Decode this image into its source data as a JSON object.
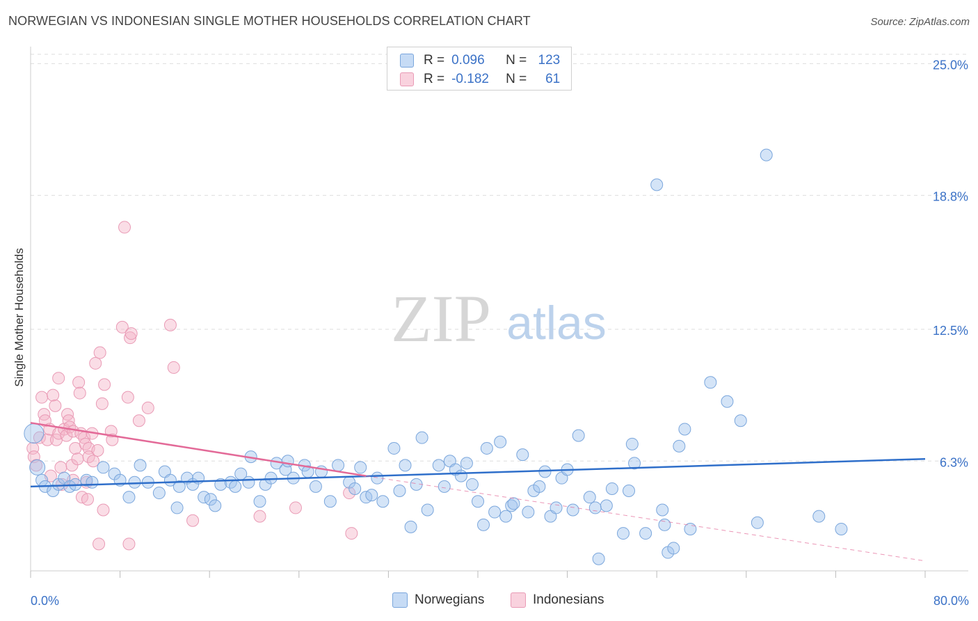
{
  "title": "NORWEGIAN VS INDONESIAN SINGLE MOTHER HOUSEHOLDS CORRELATION CHART",
  "source": "Source: ZipAtlas.com",
  "watermark": {
    "zip": "ZIP",
    "atlas": "atlas"
  },
  "legend_top": {
    "row1": {
      "r_label": "R =",
      "r_value": "0.096",
      "n_label": "N =",
      "n_value": "123"
    },
    "row2": {
      "r_label": "R =",
      "r_value": "-0.182",
      "n_label": "N =",
      "n_value": "61"
    }
  },
  "legend_bottom": {
    "series1": "Norwegians",
    "series2": "Indonesians"
  },
  "colors": {
    "blue_fill": "rgba(160,195,238,0.45)",
    "blue_stroke": "#7aa6dc",
    "blue_line": "#2f6fca",
    "pink_fill": "rgba(245,180,200,0.45)",
    "pink_stroke": "#e99ab5",
    "pink_line": "#e36a98",
    "tick_text": "#3b72c7",
    "grid": "#dddddd"
  },
  "chart_data": {
    "type": "scatter",
    "title": "NORWEGIAN VS INDONESIAN SINGLE MOTHER HOUSEHOLDS CORRELATION CHART",
    "xlabel": "",
    "ylabel": "Single Mother Households",
    "xlim": [
      0,
      80
    ],
    "ylim": [
      0,
      25.9
    ],
    "x_tick_labels": [
      "0.0%",
      "80.0%"
    ],
    "y_ticks": [
      6.3,
      12.5,
      18.8,
      25.0
    ],
    "y_tick_labels": [
      "6.3%",
      "12.5%",
      "18.8%",
      "25.0%"
    ],
    "grid": "horizontal dashed",
    "legend": "top-center",
    "series": [
      {
        "name": "Norwegians",
        "color": "#7aa6dc",
        "trend": {
          "x": [
            0,
            80
          ],
          "y": [
            5.1,
            6.4
          ]
        },
        "points": [
          [
            0.3,
            7.6
          ],
          [
            0.6,
            6.0
          ],
          [
            1.0,
            5.4
          ],
          [
            1.3,
            5.1
          ],
          [
            2.0,
            4.9
          ],
          [
            2.5,
            5.2
          ],
          [
            3.0,
            5.5
          ],
          [
            3.5,
            5.1
          ],
          [
            4.0,
            5.2
          ],
          [
            5.0,
            5.4
          ],
          [
            5.5,
            5.3
          ],
          [
            6.5,
            6.0
          ],
          [
            7.5,
            5.7
          ],
          [
            8.0,
            5.4
          ],
          [
            8.8,
            4.6
          ],
          [
            9.3,
            5.3
          ],
          [
            9.8,
            6.1
          ],
          [
            10.5,
            5.3
          ],
          [
            11.5,
            4.8
          ],
          [
            12.0,
            5.8
          ],
          [
            12.5,
            5.4
          ],
          [
            13.1,
            4.1
          ],
          [
            13.3,
            5.1
          ],
          [
            14.0,
            5.5
          ],
          [
            14.5,
            5.2
          ],
          [
            15.0,
            5.5
          ],
          [
            15.5,
            4.6
          ],
          [
            16.1,
            4.5
          ],
          [
            16.5,
            4.2
          ],
          [
            17.0,
            5.2
          ],
          [
            17.9,
            5.3
          ],
          [
            18.3,
            5.1
          ],
          [
            18.8,
            5.7
          ],
          [
            19.7,
            6.5
          ],
          [
            19.5,
            5.3
          ],
          [
            20.5,
            4.4
          ],
          [
            21.0,
            5.2
          ],
          [
            21.5,
            5.5
          ],
          [
            22.0,
            6.2
          ],
          [
            22.8,
            5.9
          ],
          [
            23.0,
            6.3
          ],
          [
            23.5,
            5.5
          ],
          [
            24.5,
            6.1
          ],
          [
            24.8,
            5.8
          ],
          [
            25.5,
            5.1
          ],
          [
            26.0,
            5.8
          ],
          [
            26.8,
            4.4
          ],
          [
            27.5,
            6.1
          ],
          [
            28.5,
            5.3
          ],
          [
            29.0,
            5.0
          ],
          [
            29.5,
            6.0
          ],
          [
            30.0,
            4.6
          ],
          [
            30.5,
            4.7
          ],
          [
            31.0,
            5.5
          ],
          [
            31.5,
            4.4
          ],
          [
            32.5,
            6.9
          ],
          [
            33.0,
            4.9
          ],
          [
            33.5,
            6.1
          ],
          [
            34.0,
            3.2
          ],
          [
            34.5,
            5.2
          ],
          [
            35.0,
            7.4
          ],
          [
            35.5,
            4.0
          ],
          [
            36.5,
            6.1
          ],
          [
            37.0,
            5.1
          ],
          [
            37.5,
            6.3
          ],
          [
            38.0,
            5.9
          ],
          [
            38.5,
            5.6
          ],
          [
            39.0,
            6.2
          ],
          [
            39.5,
            5.2
          ],
          [
            40.0,
            4.4
          ],
          [
            40.5,
            3.3
          ],
          [
            40.8,
            6.9
          ],
          [
            41.5,
            3.9
          ],
          [
            42.0,
            7.2
          ],
          [
            42.5,
            3.7
          ],
          [
            43.0,
            4.2
          ],
          [
            43.2,
            4.3
          ],
          [
            44.0,
            6.6
          ],
          [
            44.5,
            3.9
          ],
          [
            45.0,
            4.9
          ],
          [
            45.5,
            5.1
          ],
          [
            46.0,
            5.8
          ],
          [
            46.5,
            3.7
          ],
          [
            47.0,
            4.1
          ],
          [
            47.5,
            5.5
          ],
          [
            48.0,
            5.9
          ],
          [
            48.5,
            4.0
          ],
          [
            49.0,
            7.5
          ],
          [
            50.0,
            4.6
          ],
          [
            50.5,
            4.1
          ],
          [
            50.8,
            1.7
          ],
          [
            51.5,
            4.2
          ],
          [
            52.0,
            5.0
          ],
          [
            53.0,
            2.9
          ],
          [
            53.5,
            4.9
          ],
          [
            53.8,
            7.1
          ],
          [
            54.0,
            6.2
          ],
          [
            55.0,
            2.9
          ],
          [
            56.0,
            19.3
          ],
          [
            56.5,
            4.0
          ],
          [
            56.7,
            3.3
          ],
          [
            57.0,
            2.0
          ],
          [
            57.5,
            2.2
          ],
          [
            58.0,
            7.0
          ],
          [
            58.5,
            7.8
          ],
          [
            59.0,
            3.1
          ],
          [
            60.8,
            10.0
          ],
          [
            62.3,
            9.1
          ],
          [
            63.5,
            8.2
          ],
          [
            65.0,
            3.4
          ],
          [
            65.8,
            20.7
          ],
          [
            70.5,
            3.7
          ],
          [
            72.5,
            3.1
          ]
        ]
      },
      {
        "name": "Indonesians",
        "color": "#e99ab5",
        "trend": {
          "x": [
            0,
            30
          ],
          "y": [
            8.1,
            5.6
          ]
        },
        "trend_ext": {
          "x": [
            30,
            80
          ],
          "y": [
            5.6,
            1.6
          ]
        },
        "points": [
          [
            0.2,
            6.9
          ],
          [
            0.3,
            6.5
          ],
          [
            0.5,
            6.1
          ],
          [
            0.8,
            7.4
          ],
          [
            1.0,
            9.3
          ],
          [
            1.2,
            8.5
          ],
          [
            1.3,
            8.2
          ],
          [
            1.5,
            7.3
          ],
          [
            1.7,
            7.8
          ],
          [
            1.8,
            5.6
          ],
          [
            2.0,
            9.4
          ],
          [
            2.2,
            8.9
          ],
          [
            2.3,
            7.3
          ],
          [
            2.5,
            7.6
          ],
          [
            2.5,
            10.2
          ],
          [
            2.7,
            6.0
          ],
          [
            2.8,
            5.2
          ],
          [
            3.0,
            7.8
          ],
          [
            3.2,
            7.5
          ],
          [
            3.3,
            8.5
          ],
          [
            3.4,
            8.2
          ],
          [
            3.5,
            7.9
          ],
          [
            3.7,
            6.1
          ],
          [
            3.8,
            7.7
          ],
          [
            3.8,
            5.4
          ],
          [
            4.0,
            6.9
          ],
          [
            4.2,
            6.4
          ],
          [
            4.3,
            10.0
          ],
          [
            4.4,
            9.5
          ],
          [
            4.5,
            7.6
          ],
          [
            4.6,
            4.6
          ],
          [
            4.8,
            7.4
          ],
          [
            4.9,
            7.1
          ],
          [
            5.0,
            5.3
          ],
          [
            5.1,
            4.5
          ],
          [
            5.2,
            6.9
          ],
          [
            5.2,
            6.5
          ],
          [
            5.5,
            7.6
          ],
          [
            5.6,
            6.3
          ],
          [
            5.8,
            10.9
          ],
          [
            6.0,
            6.8
          ],
          [
            6.1,
            2.4
          ],
          [
            6.2,
            11.4
          ],
          [
            6.4,
            9.0
          ],
          [
            6.5,
            4.0
          ],
          [
            6.6,
            9.9
          ],
          [
            7.2,
            7.7
          ],
          [
            7.3,
            7.3
          ],
          [
            8.2,
            12.6
          ],
          [
            8.4,
            17.3
          ],
          [
            8.7,
            9.3
          ],
          [
            8.8,
            2.4
          ],
          [
            8.9,
            12.1
          ],
          [
            9.0,
            12.3
          ],
          [
            9.7,
            8.2
          ],
          [
            10.5,
            8.8
          ],
          [
            12.5,
            12.7
          ],
          [
            12.8,
            10.7
          ],
          [
            14.5,
            3.5
          ],
          [
            20.5,
            3.7
          ],
          [
            23.7,
            4.1
          ],
          [
            28.5,
            4.8
          ],
          [
            28.7,
            2.9
          ]
        ]
      }
    ]
  }
}
